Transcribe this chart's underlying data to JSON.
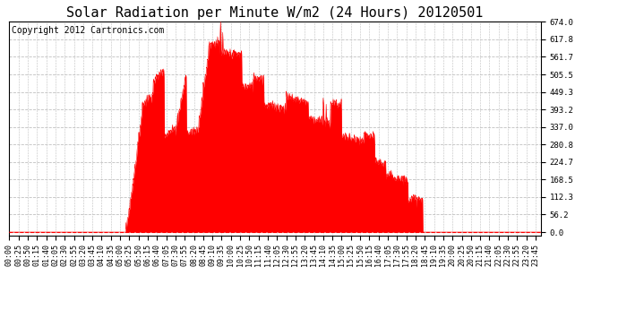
{
  "title": "Solar Radiation per Minute W/m2 (24 Hours) 20120501",
  "copyright": "Copyright 2012 Cartronics.com",
  "y_max": 674.0,
  "y_min": -10.0,
  "y_ticks": [
    0.0,
    56.2,
    112.3,
    168.5,
    224.7,
    280.8,
    337.0,
    393.2,
    449.3,
    505.5,
    561.7,
    617.8,
    674.0
  ],
  "bar_color": "#FF0000",
  "bg_color": "#FFFFFF",
  "grid_color": "#C0C0C0",
  "dashed_line_color": "#FF0000",
  "title_fontsize": 11,
  "copyright_fontsize": 7,
  "tick_fontsize": 6.5
}
